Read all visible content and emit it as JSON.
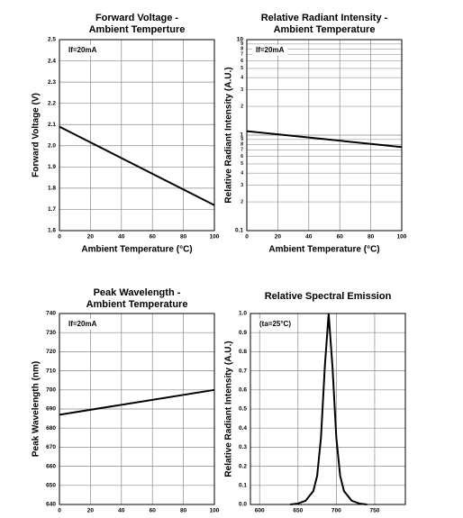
{
  "chart_data": [
    {
      "type": "line",
      "title": [
        "Forward Voltage -",
        "Ambient Temperture"
      ],
      "xlabel": "Ambient Temperature (°C)",
      "ylabel": "Forward Voltage (V)",
      "annotation": "If=20mA",
      "x": [
        0,
        100
      ],
      "values": [
        2.09,
        1.72
      ],
      "color": "#000000",
      "xlim": [
        0,
        100
      ],
      "xticks": [
        0,
        20,
        40,
        60,
        80,
        100
      ],
      "ylim": [
        1.6,
        2.5
      ],
      "yticks": [
        1.6,
        1.7,
        1.8,
        1.9,
        {
          "value": 2,
          "label": "2.0"
        },
        2.1,
        2.2,
        2.3,
        2.4,
        2.5
      ],
      "grid": true
    },
    {
      "type": "line",
      "title": [
        "Relative Radiant Intensity -",
        "Ambient Temperature"
      ],
      "xlabel": "Ambient Temperature (°C)",
      "ylabel": "Relative Radiant Intensity (A.U.)",
      "annotation": "If=20mA",
      "x": [
        0,
        100
      ],
      "values": [
        1.1,
        0.75
      ],
      "color": "#000000",
      "xlim": [
        0,
        100
      ],
      "xticks": [
        0,
        20,
        40,
        60,
        80,
        100
      ],
      "ylim": [
        0.1,
        10
      ],
      "yticks": [
        0.1,
        1,
        10
      ],
      "yscale": "log",
      "grid": true
    },
    {
      "type": "line",
      "title": [
        "Peak Wavelength -",
        "Ambient Temperature"
      ],
      "xlabel": "",
      "ylabel": "Peak Wavelength (nm)",
      "annotation": "If=20mA",
      "x": [
        0,
        100
      ],
      "values": [
        687,
        700
      ],
      "color": "#000000",
      "xlim": [
        0,
        100
      ],
      "xticks": [
        0,
        20,
        40,
        60,
        80,
        100
      ],
      "ylim": [
        640,
        740
      ],
      "yticks": [
        640,
        650,
        660,
        670,
        680,
        690,
        700,
        710,
        720,
        730,
        740
      ],
      "grid": true
    },
    {
      "type": "line",
      "title": [
        "Relative Spectral Emission"
      ],
      "xlabel": "",
      "ylabel": "Relative Radiant Intensity (A.U.)",
      "annotation": "(ta=25°C)",
      "x": [
        640,
        650,
        660,
        670,
        675,
        680,
        685,
        690,
        695,
        700,
        705,
        710,
        720,
        730,
        740
      ],
      "values": [
        0,
        0.005,
        0.02,
        0.07,
        0.15,
        0.35,
        0.72,
        1.0,
        0.72,
        0.35,
        0.15,
        0.07,
        0.02,
        0.005,
        0
      ],
      "color": "#000000",
      "xlim": [
        588,
        790
      ],
      "xticks": [
        600,
        650,
        700,
        750
      ],
      "ylim": [
        0,
        1
      ],
      "yticks": [
        {
          "value": 0,
          "label": "0.0"
        },
        0.1,
        0.2,
        0.3,
        0.4,
        0.5,
        0.6,
        0.7,
        0.8,
        0.9,
        {
          "value": 1,
          "label": "1.0"
        }
      ],
      "grid": true
    }
  ]
}
